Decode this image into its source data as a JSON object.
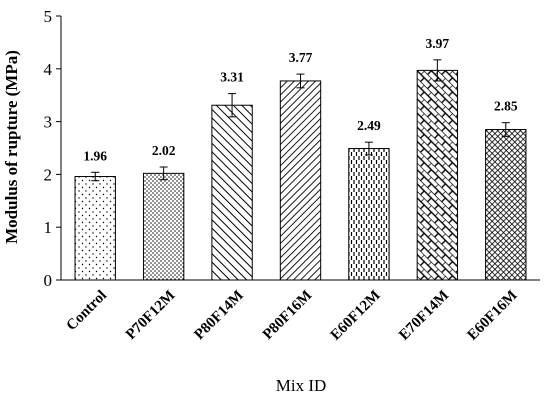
{
  "chart_data": {
    "type": "bar",
    "title": "",
    "xlabel": "Mix ID",
    "ylabel": "Modulus of rupture (MPa)",
    "ylim": [
      0,
      5
    ],
    "yticks": [
      0,
      1,
      2,
      3,
      4,
      5
    ],
    "grid": false,
    "legend": "none",
    "categories": [
      "Control",
      "P70F12M",
      "P80F14M",
      "P80F16M",
      "E60F12M",
      "E70F14M",
      "E60F16M"
    ],
    "values": [
      1.96,
      2.02,
      3.31,
      3.77,
      2.49,
      3.97,
      2.85
    ],
    "value_labels": [
      "1.96",
      "2.02",
      "3.31",
      "3.77",
      "2.49",
      "3.97",
      "2.85"
    ],
    "errors": [
      0.08,
      0.12,
      0.22,
      0.13,
      0.12,
      0.2,
      0.13
    ],
    "patterns": [
      "sparse-dots",
      "dense-dots",
      "diagonal-left",
      "diagonal-right",
      "vertical-dashes",
      "brick-diagonal",
      "crosshatch"
    ],
    "colors": {
      "bar_stroke": "#000000",
      "bar_fill": "#ffffff",
      "pattern_ink": "#000000"
    }
  }
}
